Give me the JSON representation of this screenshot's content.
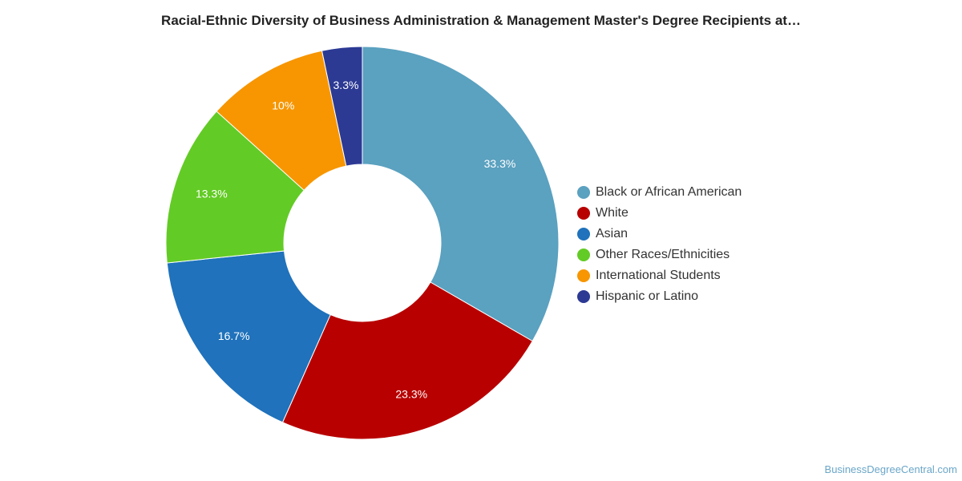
{
  "chart_data": {
    "type": "pie",
    "title": "Racial-Ethnic Diversity of Business Administration & Management Master's Degree Recipients at…",
    "slices": [
      {
        "label": "Black or African American",
        "value": 33.3,
        "display": "33.3%",
        "color": "#5ba1c0"
      },
      {
        "label": "White",
        "value": 23.3,
        "display": "23.3%",
        "color": "#b80000"
      },
      {
        "label": "Asian",
        "value": 16.7,
        "display": "16.7%",
        "color": "#1f72bb"
      },
      {
        "label": "Other Races/Ethnicities",
        "value": 13.3,
        "display": "13.3%",
        "color": "#63cb25"
      },
      {
        "label": "International Students",
        "value": 10,
        "display": "10%",
        "color": "#f79600"
      },
      {
        "label": "Hispanic or Latino",
        "value": 3.3,
        "display": "3.3%",
        "color": "#2c3a94"
      }
    ],
    "legend_position": "right"
  },
  "watermark": "BusinessDegreeCentral.com"
}
